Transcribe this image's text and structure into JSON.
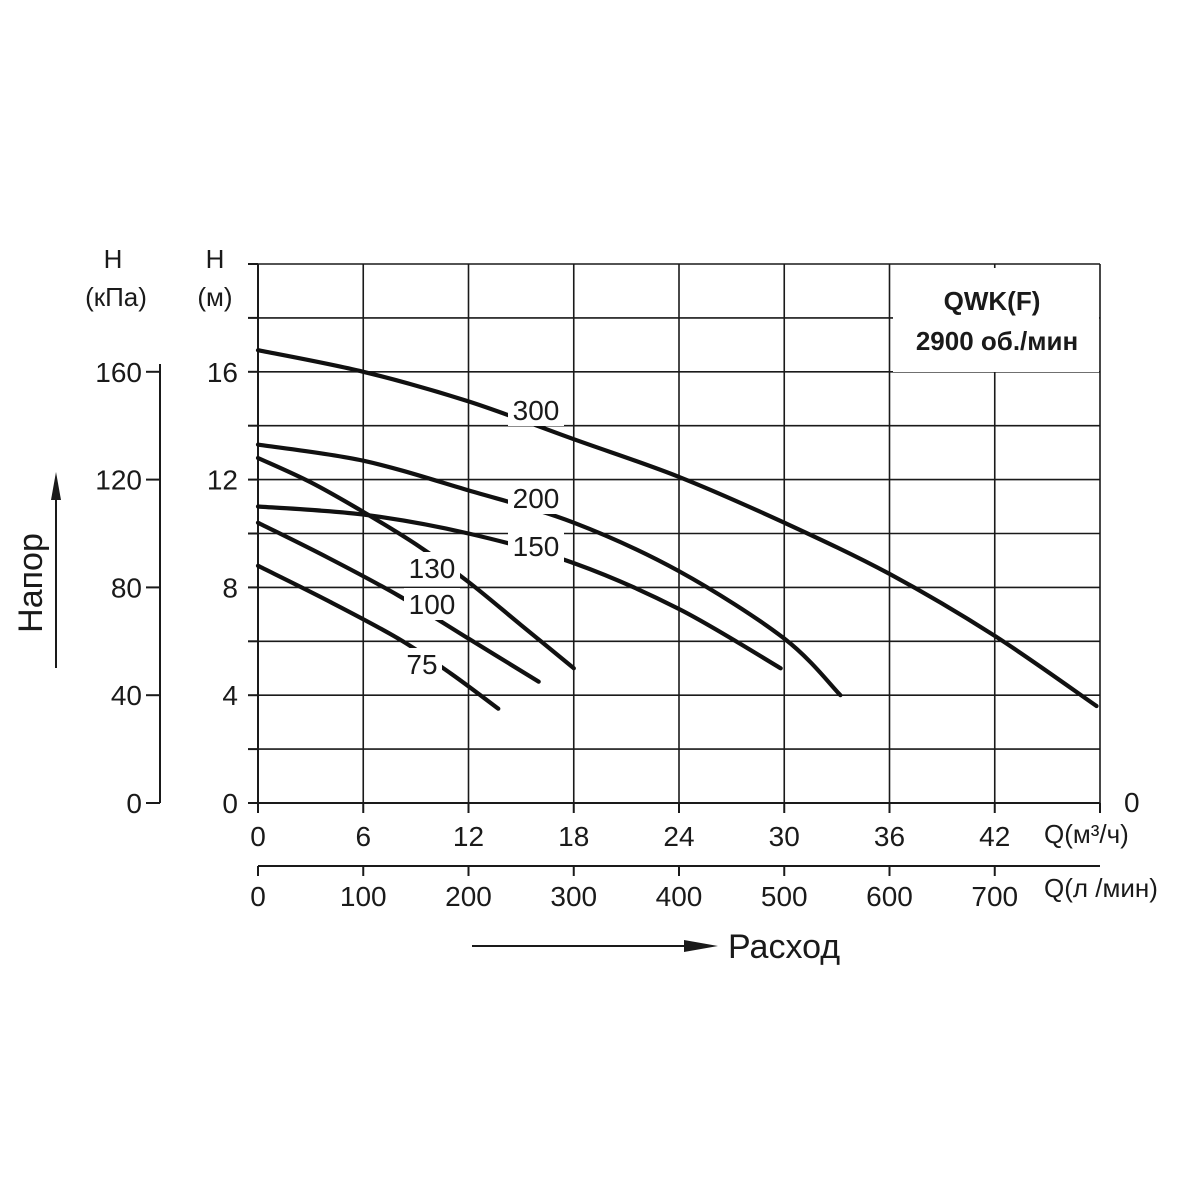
{
  "chart_data": {
    "type": "line",
    "title": "QWK(F)",
    "subtitle": "2900 об./мин",
    "y_label": "Напор",
    "x_label": "Расход",
    "y_axis_m": {
      "name": "H",
      "unit": "(м)",
      "range": [
        0,
        20
      ],
      "ticks": [
        0,
        4,
        8,
        12,
        16
      ]
    },
    "y_axis_kpa": {
      "name": "H",
      "unit": "(кПа)",
      "range": [
        0,
        200
      ],
      "ticks": [
        0,
        40,
        80,
        120,
        160
      ]
    },
    "x_axis_m3h": {
      "unit": "Q(м³/ч)",
      "range": [
        0,
        48
      ],
      "ticks": [
        0,
        6,
        12,
        18,
        24,
        30,
        36,
        42
      ],
      "end_label": "0"
    },
    "x_axis_lmin": {
      "unit": "Q(л /мин)",
      "range": [
        0,
        800
      ],
      "ticks": [
        0,
        100,
        200,
        300,
        400,
        500,
        600,
        700
      ]
    },
    "series": [
      {
        "name": "300",
        "x": [
          0,
          6,
          12,
          18,
          24,
          30,
          36,
          42,
          47.8
        ],
        "y": [
          16.8,
          16.0,
          14.9,
          13.5,
          12.1,
          10.4,
          8.5,
          6.2,
          3.6
        ]
      },
      {
        "name": "200",
        "x": [
          0,
          6,
          12,
          18,
          24,
          30,
          33.2
        ],
        "y": [
          13.3,
          12.7,
          11.6,
          10.4,
          8.6,
          6.1,
          4.0
        ]
      },
      {
        "name": "150",
        "x": [
          0,
          6,
          12,
          18,
          24,
          29.8
        ],
        "y": [
          11.0,
          10.7,
          10.0,
          8.9,
          7.2,
          5.0
        ]
      },
      {
        "name": "130",
        "x": [
          0,
          3,
          6,
          9,
          12,
          15,
          18
        ],
        "y": [
          12.8,
          11.9,
          10.8,
          9.6,
          8.2,
          6.6,
          5.0
        ]
      },
      {
        "name": "100",
        "x": [
          0,
          4,
          8,
          12,
          16
        ],
        "y": [
          10.4,
          9.1,
          7.7,
          6.1,
          4.5
        ]
      },
      {
        "name": "75",
        "x": [
          0,
          4,
          8,
          11,
          13.7
        ],
        "y": [
          8.8,
          7.5,
          6.1,
          4.8,
          3.5
        ]
      }
    ],
    "grid": true
  }
}
